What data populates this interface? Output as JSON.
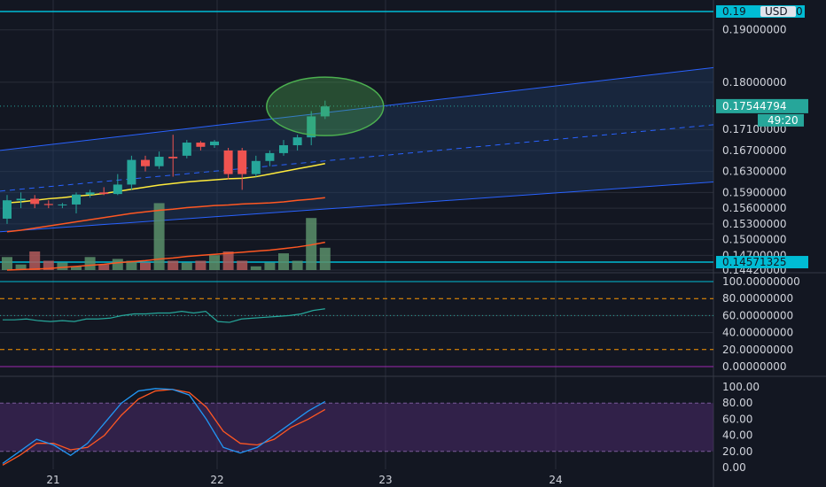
{
  "colors": {
    "background": "#131722",
    "grid": "#2a2e39",
    "axis_text": "#d1d4dc",
    "up": "#26a69a",
    "down": "#ef5350",
    "channel_line": "#2962ff",
    "channel_fill": "#1e3a5f",
    "horizontal_line": "#00bcd4",
    "ma_fast": "#ffeb3b",
    "ma_mid": "#ff5722",
    "ma_slow": "#ff5722",
    "ellipse": "#4caf50",
    "rsi_line": "#26a69a",
    "rsi_band": "#ff9800",
    "stoch_k": "#2196f3",
    "stoch_d": "#ff5722",
    "stoch_fill": "#4a2a6a",
    "vol_up": "#5a8f6a",
    "vol_down": "#b35a5a"
  },
  "price_axis": {
    "ticks": [
      "0.19000000",
      "0.18000000",
      "0.17100000",
      "0.16700000",
      "0.16300000",
      "0.15900000",
      "0.15600000",
      "0.15300000",
      "0.15000000",
      "0.14700000",
      "0.14420000"
    ],
    "current_price": "0.17544794",
    "countdown": "49:20",
    "top_line_label": "0.19",
    "top_line_suffix": "0",
    "top_currency": "USD",
    "bottom_line_label": "0.14571325"
  },
  "rsi_axis": {
    "ticks": [
      "100.00000000",
      "80.00000000",
      "60.00000000",
      "40.00000000",
      "20.00000000",
      "0.00000000"
    ]
  },
  "stoch_axis": {
    "ticks": [
      "100.00",
      "80.00",
      "60.00",
      "40.00",
      "20.00",
      "0.00"
    ]
  },
  "time_axis": {
    "labels": [
      "21",
      "22",
      "23",
      "24"
    ]
  },
  "chart_data": {
    "type": "candlestick",
    "price_range": [
      0.1442,
      0.194
    ],
    "candles": [
      {
        "o": 0.154,
        "h": 0.1585,
        "l": 0.153,
        "c": 0.1575
      },
      {
        "o": 0.1575,
        "h": 0.159,
        "l": 0.156,
        "c": 0.1578
      },
      {
        "o": 0.1578,
        "h": 0.1585,
        "l": 0.156,
        "c": 0.1568
      },
      {
        "o": 0.1568,
        "h": 0.1575,
        "l": 0.156,
        "c": 0.1566
      },
      {
        "o": 0.1566,
        "h": 0.157,
        "l": 0.156,
        "c": 0.1567
      },
      {
        "o": 0.1567,
        "h": 0.159,
        "l": 0.155,
        "c": 0.1586
      },
      {
        "o": 0.1586,
        "h": 0.1595,
        "l": 0.158,
        "c": 0.159
      },
      {
        "o": 0.159,
        "h": 0.16,
        "l": 0.1585,
        "c": 0.1587
      },
      {
        "o": 0.1587,
        "h": 0.1625,
        "l": 0.1585,
        "c": 0.1605
      },
      {
        "o": 0.1605,
        "h": 0.166,
        "l": 0.1595,
        "c": 0.1652
      },
      {
        "o": 0.1652,
        "h": 0.166,
        "l": 0.163,
        "c": 0.164
      },
      {
        "o": 0.164,
        "h": 0.1668,
        "l": 0.1635,
        "c": 0.1658
      },
      {
        "o": 0.1658,
        "h": 0.17,
        "l": 0.162,
        "c": 0.1655
      },
      {
        "o": 0.166,
        "h": 0.169,
        "l": 0.1655,
        "c": 0.1685
      },
      {
        "o": 0.1685,
        "h": 0.1688,
        "l": 0.167,
        "c": 0.1677
      },
      {
        "o": 0.168,
        "h": 0.169,
        "l": 0.1675,
        "c": 0.1687
      },
      {
        "o": 0.167,
        "h": 0.1675,
        "l": 0.1615,
        "c": 0.1625
      },
      {
        "o": 0.167,
        "h": 0.1675,
        "l": 0.1595,
        "c": 0.1625
      },
      {
        "o": 0.1625,
        "h": 0.166,
        "l": 0.162,
        "c": 0.165
      },
      {
        "o": 0.165,
        "h": 0.167,
        "l": 0.164,
        "c": 0.1665
      },
      {
        "o": 0.1665,
        "h": 0.169,
        "l": 0.166,
        "c": 0.168
      },
      {
        "o": 0.168,
        "h": 0.17,
        "l": 0.167,
        "c": 0.1695
      },
      {
        "o": 0.1695,
        "h": 0.1745,
        "l": 0.168,
        "c": 0.1735
      },
      {
        "o": 0.1735,
        "h": 0.1765,
        "l": 0.173,
        "c": 0.1754
      }
    ],
    "volume": [
      7,
      3,
      10,
      5,
      4,
      2,
      7,
      3,
      6,
      5,
      4,
      36,
      5,
      4,
      5,
      8,
      10,
      5,
      2,
      4,
      9,
      5,
      28,
      12
    ],
    "ma_fast": [
      0.157,
      0.1572,
      0.1575,
      0.1578,
      0.158,
      0.1583,
      0.1585,
      0.1588,
      0.1592,
      0.1596,
      0.16,
      0.1604,
      0.1607,
      0.161,
      0.1612,
      0.1614,
      0.1616,
      0.1617,
      0.162,
      0.1625,
      0.163,
      0.1635,
      0.164,
      0.1645
    ],
    "ma_mid": [
      0.1515,
      0.1518,
      0.1522,
      0.1526,
      0.153,
      0.1534,
      0.1538,
      0.1542,
      0.1546,
      0.155,
      0.1553,
      0.1556,
      0.1558,
      0.1561,
      0.1563,
      0.1565,
      0.1566,
      0.1568,
      0.1569,
      0.157,
      0.1572,
      0.1575,
      0.1577,
      0.158
    ],
    "ma_slow": [
      0.1442,
      0.1443,
      0.1444,
      0.1445,
      0.1447,
      0.1449,
      0.1451,
      0.1453,
      0.1456,
      0.1458,
      0.146,
      0.1463,
      0.1465,
      0.1468,
      0.147,
      0.1472,
      0.1474,
      0.1476,
      0.1478,
      0.148,
      0.1483,
      0.1486,
      0.149,
      0.1495
    ],
    "rsi": [
      55,
      55,
      56,
      54,
      53,
      54,
      53,
      56,
      56,
      57,
      60,
      62,
      62,
      63,
      63,
      65,
      63,
      65,
      53,
      52,
      56,
      57,
      58,
      59,
      60,
      62,
      66,
      68
    ],
    "stoch_k": [
      5,
      20,
      35,
      28,
      15,
      30,
      55,
      80,
      95,
      98,
      97,
      90,
      60,
      25,
      18,
      25,
      40,
      55,
      70,
      82
    ],
    "stoch_d": [
      3,
      15,
      30,
      30,
      22,
      25,
      40,
      65,
      85,
      95,
      97,
      93,
      75,
      45,
      30,
      28,
      35,
      50,
      60,
      72
    ],
    "channel": {
      "upper": [
        0.167,
        0.1828
      ],
      "lower": [
        0.1515,
        0.161
      ]
    },
    "horizontal_lines": [
      0.1935,
      0.14571325
    ]
  }
}
